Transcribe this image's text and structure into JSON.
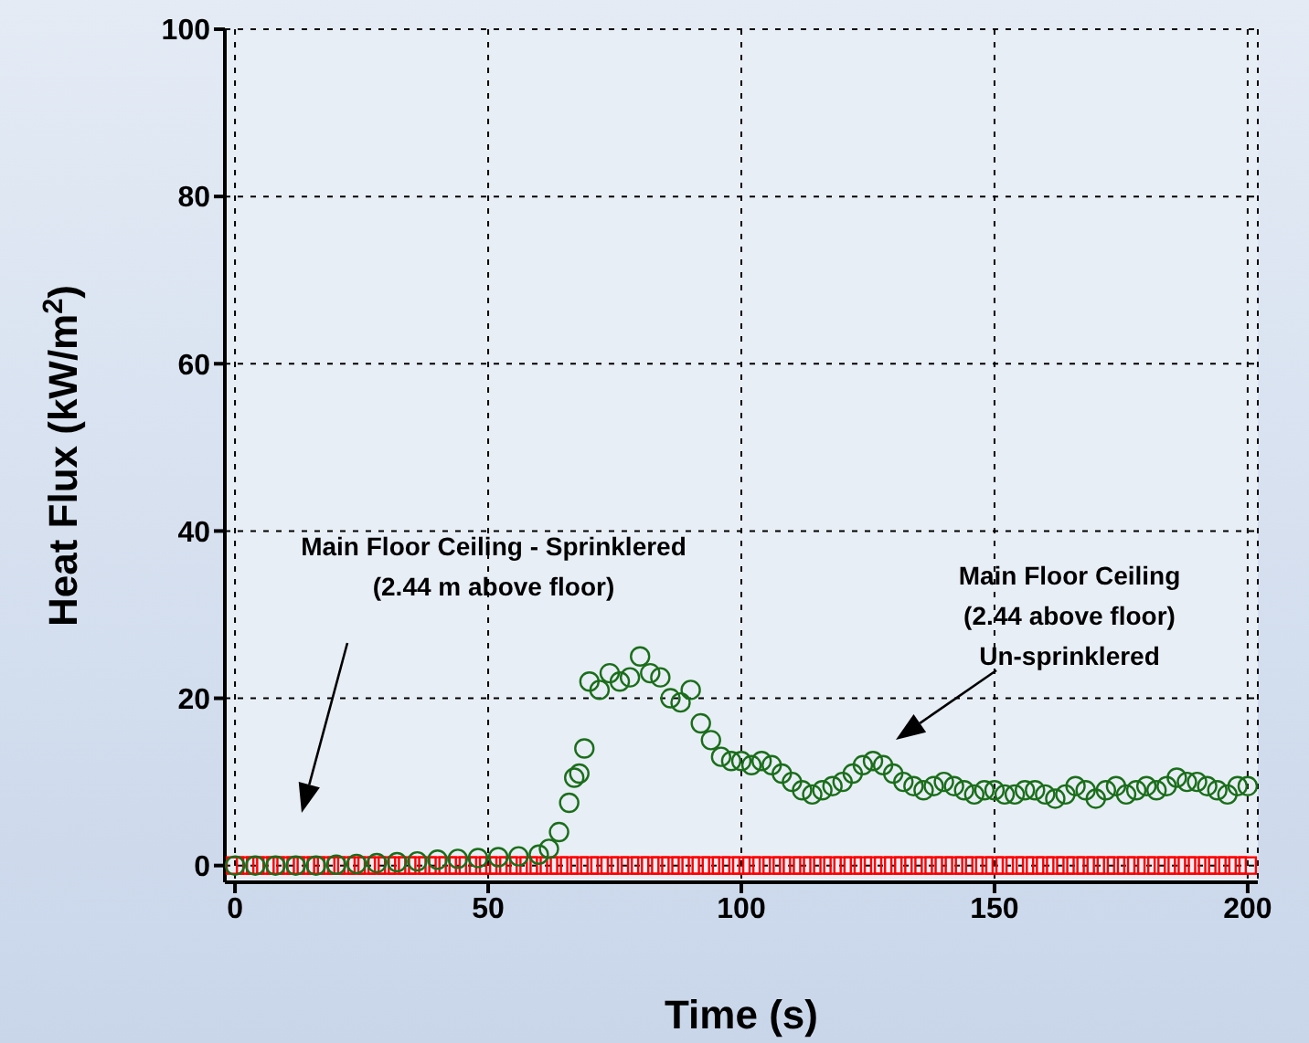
{
  "chart_data": {
    "type": "scatter",
    "xlabel": "Time (s)",
    "ylabel": "Heat Flux (kW/m$^{2}$)",
    "xlim": [
      -2,
      202
    ],
    "ylim": [
      -2,
      100
    ],
    "xticks": [
      0,
      50,
      100,
      150,
      200
    ],
    "yticks": [
      0,
      20,
      40,
      60,
      80,
      100
    ],
    "grid": true,
    "annotations": [
      "Main Floor Ceiling - Sprinklered\n(2.44 m above floor)",
      "Main Floor Ceiling\n(2.44 above floor)\nUn-sprinklered"
    ],
    "series": [
      {
        "color": "#ff0000",
        "marker": "square",
        "x": [
          0,
          2,
          4,
          6,
          8,
          10,
          12,
          14,
          16,
          18,
          20,
          22,
          24,
          26,
          28,
          30,
          32,
          34,
          36,
          38,
          40,
          42,
          44,
          46,
          48,
          50,
          52,
          54,
          56,
          58,
          60,
          62,
          64,
          66,
          68,
          70,
          72,
          74,
          76,
          78,
          80,
          82,
          84,
          86,
          88,
          90,
          92,
          94,
          96,
          98,
          100,
          102,
          104,
          106,
          108,
          110,
          112,
          114,
          116,
          118,
          120,
          122,
          124,
          126,
          128,
          130,
          132,
          134,
          136,
          138,
          140,
          142,
          144,
          146,
          148,
          150,
          152,
          154,
          156,
          158,
          160,
          162,
          164,
          166,
          168,
          170,
          172,
          174,
          176,
          178,
          180,
          182,
          184,
          186,
          188,
          190,
          192,
          194,
          196,
          198,
          200
        ],
        "values": [
          0,
          0,
          0,
          0,
          0,
          0,
          0,
          0,
          0,
          0,
          0,
          0,
          0,
          0,
          0,
          0,
          0,
          0,
          0,
          0,
          0,
          0,
          0,
          0,
          0,
          0,
          0,
          0,
          0,
          0,
          0,
          0,
          0,
          0,
          0,
          0,
          0,
          0,
          0,
          0,
          0,
          0,
          0,
          0,
          0,
          0,
          0,
          0,
          0,
          0,
          0,
          0,
          0,
          0,
          0,
          0,
          0,
          0,
          0,
          0,
          0,
          0,
          0,
          0,
          0,
          0,
          0,
          0,
          0,
          0,
          0,
          0,
          0,
          0,
          0,
          0,
          0,
          0,
          0,
          0,
          0,
          0,
          0,
          0,
          0,
          0,
          0,
          0,
          0,
          0,
          0,
          0,
          0,
          0,
          0,
          0,
          0,
          0,
          0,
          0,
          0
        ]
      },
      {
        "color": "#1a6e1a",
        "marker": "circle",
        "x": [
          0,
          4,
          8,
          12,
          16,
          20,
          24,
          28,
          32,
          36,
          40,
          44,
          48,
          52,
          56,
          60,
          62,
          64,
          66,
          67,
          68,
          69,
          70,
          72,
          74,
          76,
          78,
          80,
          82,
          84,
          86,
          88,
          90,
          92,
          94,
          96,
          98,
          100,
          102,
          104,
          106,
          108,
          110,
          112,
          114,
          116,
          118,
          120,
          122,
          124,
          126,
          128,
          130,
          132,
          134,
          136,
          138,
          140,
          142,
          144,
          146,
          148,
          150,
          152,
          154,
          156,
          158,
          160,
          162,
          164,
          166,
          168,
          170,
          172,
          174,
          176,
          178,
          180,
          182,
          184,
          186,
          188,
          190,
          192,
          194,
          196,
          198,
          200
        ],
        "values": [
          0,
          0,
          0,
          0,
          0,
          0.1,
          0.2,
          0.3,
          0.4,
          0.5,
          0.7,
          0.8,
          0.9,
          1,
          1.1,
          1.3,
          2,
          4,
          7.5,
          10.5,
          11,
          14,
          22,
          21,
          23,
          22,
          22.5,
          25,
          23,
          22.5,
          20,
          19.5,
          21,
          17,
          15,
          13,
          12.5,
          12.5,
          12,
          12.5,
          12,
          11,
          10,
          9,
          8.5,
          9,
          9.5,
          10,
          11,
          12,
          12.5,
          12,
          11,
          10,
          9.5,
          9,
          9.5,
          10,
          9.5,
          9,
          8.5,
          9,
          9,
          8.5,
          8.5,
          9,
          9,
          8.5,
          8,
          8.5,
          9.5,
          9,
          8,
          9,
          9.5,
          8.5,
          9,
          9.5,
          9,
          9.5,
          10.5,
          10,
          10,
          9.5,
          9,
          8.5,
          9.5,
          9.5
        ]
      }
    ]
  }
}
